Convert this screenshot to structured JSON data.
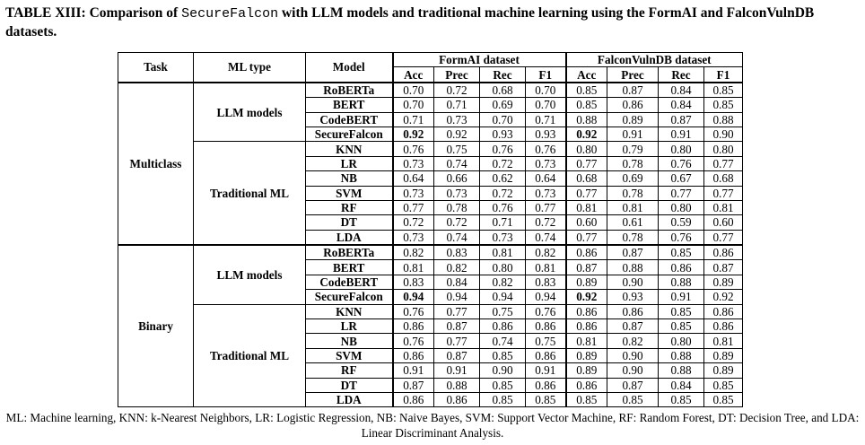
{
  "caption": {
    "prefix": "TABLE XIII: Comparison of ",
    "model_name": "SecureFalcon",
    "suffix": " with LLM models and traditional machine learning using the FormAI and FalconVulnDB datasets."
  },
  "headers": {
    "task": "Task",
    "ml_type": "ML type",
    "model": "Model",
    "dataset1": "FormAI dataset",
    "dataset2": "FalconVulnDB dataset",
    "metrics": [
      "Acc",
      "Prec",
      "Rec",
      "F1"
    ]
  },
  "groups": [
    {
      "task": "Multiclass",
      "types": [
        {
          "name": "LLM models",
          "rows": [
            {
              "model": "RoBERTa",
              "values": [
                "0.70",
                "0.72",
                "0.68",
                "0.70",
                "0.85",
                "0.87",
                "0.84",
                "0.85"
              ],
              "bold": []
            },
            {
              "model": "BERT",
              "values": [
                "0.70",
                "0.71",
                "0.69",
                "0.70",
                "0.85",
                "0.86",
                "0.84",
                "0.85"
              ],
              "bold": []
            },
            {
              "model": "CodeBERT",
              "values": [
                "0.71",
                "0.73",
                "0.70",
                "0.71",
                "0.88",
                "0.89",
                "0.87",
                "0.88"
              ],
              "bold": []
            },
            {
              "model": "SecureFalcon",
              "values": [
                "0.92",
                "0.92",
                "0.93",
                "0.93",
                "0.92",
                "0.91",
                "0.91",
                "0.90"
              ],
              "bold": [
                0,
                4
              ]
            }
          ]
        },
        {
          "name": "Traditional ML",
          "rows": [
            {
              "model": "KNN",
              "values": [
                "0.76",
                "0.75",
                "0.76",
                "0.76",
                "0.80",
                "0.79",
                "0.80",
                "0.80"
              ],
              "bold": []
            },
            {
              "model": "LR",
              "values": [
                "0.73",
                "0.74",
                "0.72",
                "0.73",
                "0.77",
                "0.78",
                "0.76",
                "0.77"
              ],
              "bold": []
            },
            {
              "model": "NB",
              "values": [
                "0.64",
                "0.66",
                "0.62",
                "0.64",
                "0.68",
                "0.69",
                "0.67",
                "0.68"
              ],
              "bold": []
            },
            {
              "model": "SVM",
              "values": [
                "0.73",
                "0.73",
                "0.72",
                "0.73",
                "0.77",
                "0.78",
                "0.77",
                "0.77"
              ],
              "bold": []
            },
            {
              "model": "RF",
              "values": [
                "0.77",
                "0.78",
                "0.76",
                "0.77",
                "0.81",
                "0.81",
                "0.80",
                "0.81"
              ],
              "bold": []
            },
            {
              "model": "DT",
              "values": [
                "0.72",
                "0.72",
                "0.71",
                "0.72",
                "0.60",
                "0.61",
                "0.59",
                "0.60"
              ],
              "bold": []
            },
            {
              "model": "LDA",
              "values": [
                "0.73",
                "0.74",
                "0.73",
                "0.74",
                "0.77",
                "0.78",
                "0.76",
                "0.77"
              ],
              "bold": []
            }
          ]
        }
      ]
    },
    {
      "task": "Binary",
      "types": [
        {
          "name": "LLM models",
          "rows": [
            {
              "model": "RoBERTa",
              "values": [
                "0.82",
                "0.83",
                "0.81",
                "0.82",
                "0.86",
                "0.87",
                "0.85",
                "0.86"
              ],
              "bold": []
            },
            {
              "model": "BERT",
              "values": [
                "0.81",
                "0.82",
                "0.80",
                "0.81",
                "0.87",
                "0.88",
                "0.86",
                "0.87"
              ],
              "bold": []
            },
            {
              "model": "CodeBERT",
              "values": [
                "0.83",
                "0.84",
                "0.82",
                "0.83",
                "0.89",
                "0.90",
                "0.88",
                "0.89"
              ],
              "bold": []
            },
            {
              "model": "SecureFalcon",
              "values": [
                "0.94",
                "0.94",
                "0.94",
                "0.94",
                "0.92",
                "0.93",
                "0.91",
                "0.92"
              ],
              "bold": [
                0,
                4
              ]
            }
          ]
        },
        {
          "name": "Traditional ML",
          "rows": [
            {
              "model": "KNN",
              "values": [
                "0.76",
                "0.77",
                "0.75",
                "0.76",
                "0.86",
                "0.86",
                "0.85",
                "0.86"
              ],
              "bold": []
            },
            {
              "model": "LR",
              "values": [
                "0.86",
                "0.87",
                "0.86",
                "0.86",
                "0.86",
                "0.87",
                "0.85",
                "0.86"
              ],
              "bold": []
            },
            {
              "model": "NB",
              "values": [
                "0.76",
                "0.77",
                "0.74",
                "0.75",
                "0.81",
                "0.82",
                "0.80",
                "0.81"
              ],
              "bold": []
            },
            {
              "model": "SVM",
              "values": [
                "0.86",
                "0.87",
                "0.85",
                "0.86",
                "0.89",
                "0.90",
                "0.88",
                "0.89"
              ],
              "bold": []
            },
            {
              "model": "RF",
              "values": [
                "0.91",
                "0.91",
                "0.90",
                "0.91",
                "0.89",
                "0.90",
                "0.88",
                "0.89"
              ],
              "bold": []
            },
            {
              "model": "DT",
              "values": [
                "0.87",
                "0.88",
                "0.85",
                "0.86",
                "0.86",
                "0.87",
                "0.84",
                "0.85"
              ],
              "bold": []
            },
            {
              "model": "LDA",
              "values": [
                "0.86",
                "0.86",
                "0.85",
                "0.85",
                "0.85",
                "0.85",
                "0.85",
                "0.85"
              ],
              "bold": []
            }
          ]
        }
      ]
    }
  ],
  "footnote": "ML: Machine learning, KNN: k-Nearest Neighbors, LR: Logistic Regression, NB: Naive Bayes, SVM: Support Vector Machine, RF: Random Forest, DT: Decision Tree, and LDA: Linear Discriminant Analysis."
}
